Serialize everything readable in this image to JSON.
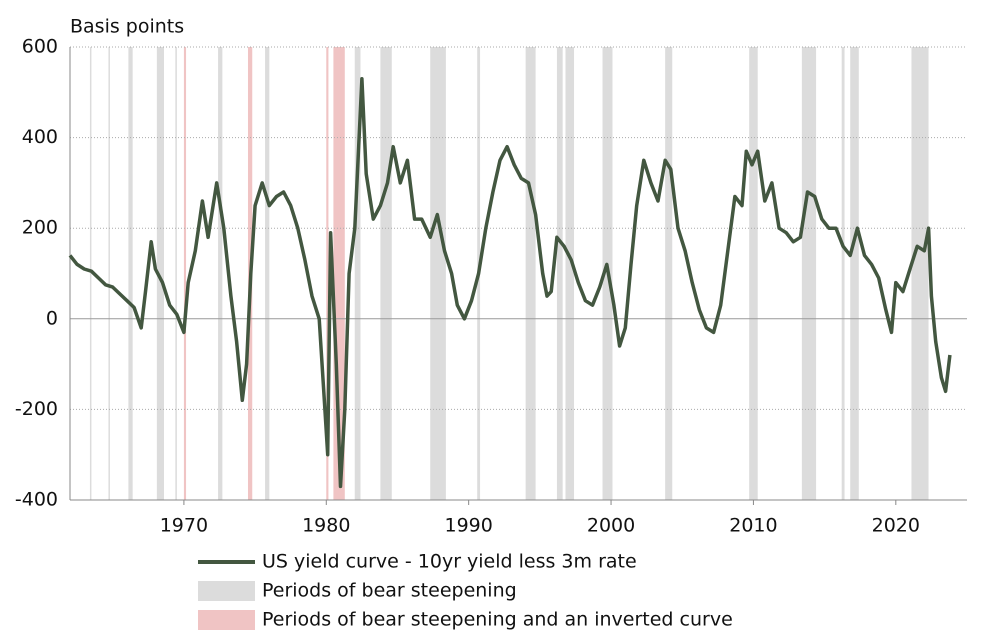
{
  "chart_data": {
    "type": "line",
    "ylabel": "Basis points",
    "xlim": [
      1962,
      2025
    ],
    "ylim": [
      -400,
      600
    ],
    "xticks": [
      1970,
      1980,
      1990,
      2000,
      2010,
      2020
    ],
    "yticks": [
      -400,
      -200,
      0,
      200,
      400,
      600
    ],
    "grid": true,
    "series": [
      {
        "name": "US yield curve - 10yr yield less 3m rate",
        "color": "#435740",
        "x": [
          1962,
          1962.5,
          1963,
          1963.5,
          1964,
          1964.5,
          1965,
          1965.5,
          1966,
          1966.5,
          1967,
          1967.3,
          1967.7,
          1968,
          1968.5,
          1969,
          1969.5,
          1970,
          1970.3,
          1970.8,
          1971.3,
          1971.7,
          1972.3,
          1972.8,
          1973.3,
          1973.7,
          1974.1,
          1974.4,
          1974.7,
          1975,
          1975.5,
          1976,
          1976.5,
          1977,
          1977.5,
          1978,
          1978.5,
          1979,
          1979.5,
          1979.9,
          1980.1,
          1980.3,
          1980.7,
          1981,
          1981.3,
          1981.6,
          1982,
          1982.5,
          1982.8,
          1983.3,
          1983.8,
          1984.3,
          1984.7,
          1985.2,
          1985.7,
          1986.2,
          1986.7,
          1987.3,
          1987.8,
          1988.3,
          1988.8,
          1989.2,
          1989.7,
          1990.2,
          1990.7,
          1991.2,
          1991.7,
          1992.2,
          1992.7,
          1993.2,
          1993.7,
          1994.2,
          1994.7,
          1995.2,
          1995.5,
          1995.8,
          1996.2,
          1996.7,
          1997.2,
          1997.7,
          1998.2,
          1998.7,
          1999.2,
          1999.7,
          2000.2,
          2000.6,
          2001,
          2001.4,
          2001.8,
          2002.3,
          2002.8,
          2003.3,
          2003.8,
          2004.2,
          2004.7,
          2005.2,
          2005.7,
          2006.2,
          2006.7,
          2007.2,
          2007.7,
          2008.2,
          2008.7,
          2009.2,
          2009.5,
          2009.9,
          2010.3,
          2010.8,
          2011.3,
          2011.8,
          2012.3,
          2012.8,
          2013.3,
          2013.8,
          2014.3,
          2014.8,
          2015.3,
          2015.8,
          2016.3,
          2016.8,
          2017.3,
          2017.8,
          2018.3,
          2018.8,
          2019.3,
          2019.7,
          2020,
          2020.5,
          2021,
          2021.5,
          2022,
          2022.3,
          2022.5,
          2022.8,
          2023.2,
          2023.5,
          2023.8
        ],
        "values": [
          140,
          120,
          110,
          105,
          90,
          75,
          70,
          55,
          40,
          25,
          -20,
          60,
          170,
          110,
          80,
          30,
          10,
          -30,
          80,
          150,
          260,
          180,
          300,
          200,
          50,
          -50,
          -180,
          -100,
          100,
          250,
          300,
          250,
          270,
          280,
          250,
          200,
          130,
          50,
          0,
          -200,
          -300,
          190,
          -100,
          -370,
          -200,
          100,
          200,
          530,
          320,
          220,
          250,
          300,
          380,
          300,
          350,
          220,
          220,
          180,
          230,
          150,
          100,
          30,
          0,
          40,
          100,
          200,
          280,
          350,
          380,
          340,
          310,
          300,
          230,
          100,
          50,
          60,
          180,
          160,
          130,
          80,
          40,
          30,
          70,
          120,
          30,
          -60,
          -20,
          120,
          250,
          350,
          300,
          260,
          350,
          330,
          200,
          150,
          80,
          20,
          -20,
          -30,
          30,
          150,
          270,
          250,
          370,
          340,
          370,
          260,
          300,
          200,
          190,
          170,
          180,
          280,
          270,
          220,
          200,
          200,
          160,
          140,
          200,
          140,
          120,
          90,
          20,
          -30,
          80,
          60,
          110,
          160,
          150,
          200,
          50,
          -50,
          -130,
          -160,
          -80
        ]
      }
    ],
    "bands": [
      {
        "name": "Periods of bear steepening",
        "color": "#dcdcdc",
        "periods": [
          [
            1963.4,
            1963.5
          ],
          [
            1964.7,
            1964.8
          ],
          [
            1966.1,
            1966.4
          ],
          [
            1968.1,
            1968.6
          ],
          [
            1969.4,
            1969.5
          ],
          [
            1972.4,
            1972.7
          ],
          [
            1975.7,
            1976.0
          ],
          [
            1982.0,
            1982.4
          ],
          [
            1983.8,
            1984.6
          ],
          [
            1987.3,
            1988.4
          ],
          [
            1990.6,
            1990.8
          ],
          [
            1994.0,
            1994.7
          ],
          [
            1996.2,
            1996.6
          ],
          [
            1996.8,
            1997.4
          ],
          [
            1999.4,
            2000.1
          ],
          [
            2003.8,
            2004.3
          ],
          [
            2009.7,
            2010.3
          ],
          [
            2013.4,
            2014.4
          ],
          [
            2016.2,
            2016.4
          ],
          [
            2016.8,
            2017.4
          ],
          [
            2021.1,
            2022.3
          ]
        ]
      },
      {
        "name": "Periods of bear steepening and an inverted curve",
        "color": "#f0c4c4",
        "periods": [
          [
            1970.0,
            1970.15
          ],
          [
            1974.5,
            1974.8
          ],
          [
            1980.0,
            1980.15
          ],
          [
            1980.5,
            1981.3
          ]
        ]
      }
    ]
  }
}
